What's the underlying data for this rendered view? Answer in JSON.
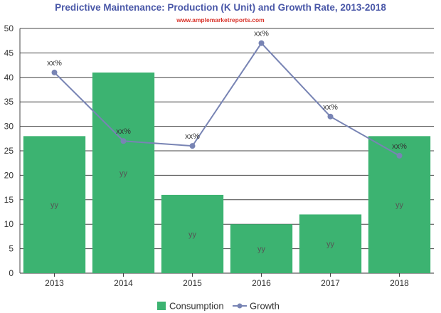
{
  "chart_data": {
    "type": "bar",
    "title": "Predictive Maintenance: Production (K Unit) and Growth Rate, 2013-2018",
    "subtitle": "www.amplemarketreports.com",
    "categories": [
      "2013",
      "2014",
      "2015",
      "2016",
      "2017",
      "2018"
    ],
    "series": [
      {
        "name": "Consumption",
        "type": "bar",
        "values": [
          28,
          41,
          16,
          10,
          12,
          28
        ],
        "labels": [
          "yy",
          "yy",
          "yy",
          "yy",
          "yy",
          "yy"
        ]
      },
      {
        "name": "Growth",
        "type": "line",
        "values": [
          41,
          27,
          26,
          47,
          32,
          24
        ],
        "labels": [
          "xx%",
          "xx%",
          "xx%",
          "xx%",
          "xx%",
          "xx%"
        ]
      }
    ],
    "ylim": [
      0,
      50
    ],
    "yticks": [
      0,
      5,
      10,
      15,
      20,
      25,
      30,
      35,
      40,
      45,
      50
    ],
    "grid": true,
    "legend_position": "bottom",
    "colors": {
      "bar": "#3cb371",
      "line": "#7884b4"
    }
  }
}
